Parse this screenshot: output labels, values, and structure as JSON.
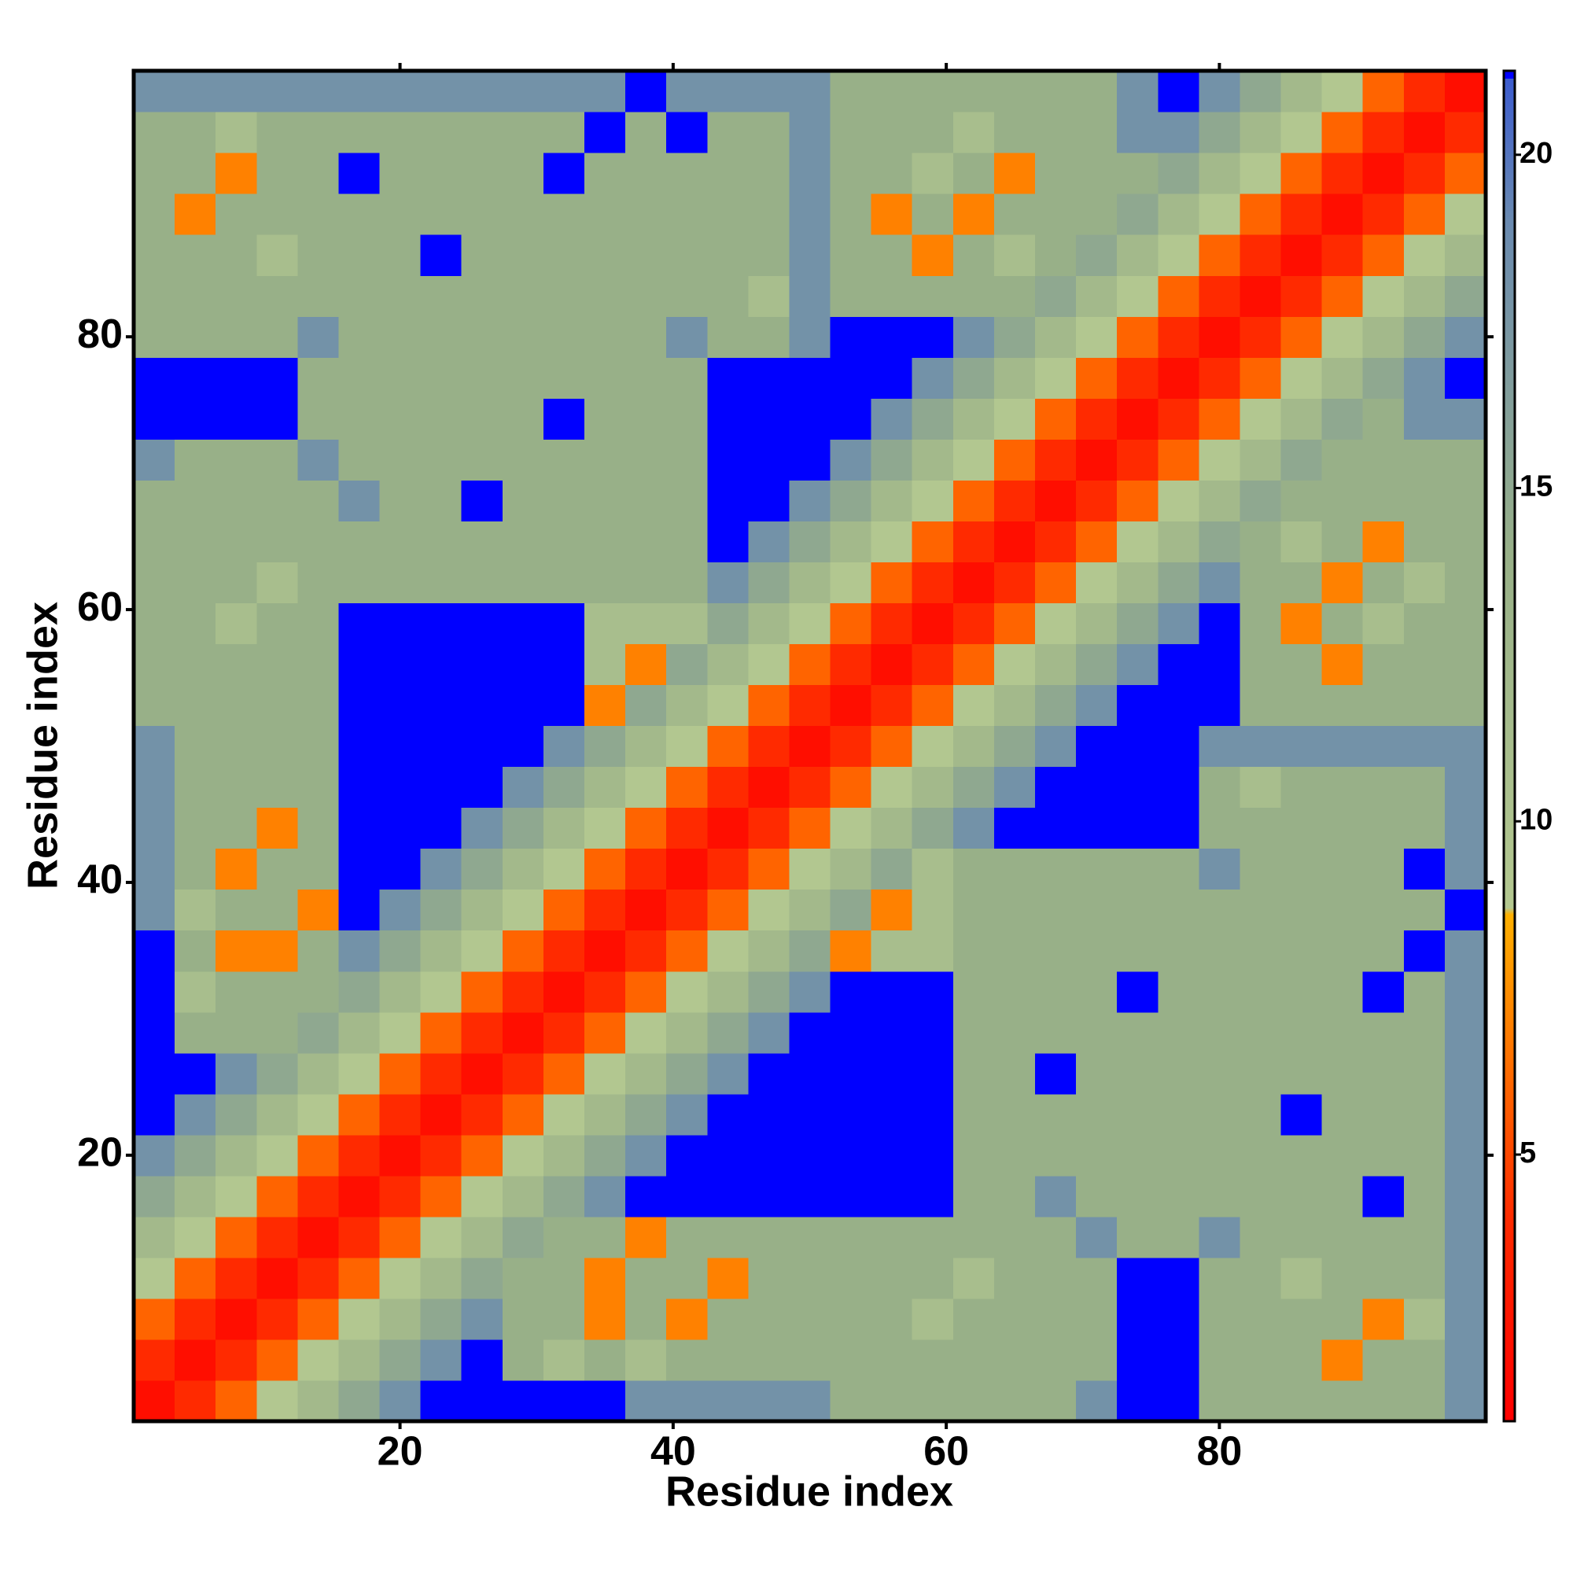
{
  "chart_data": {
    "type": "heatmap",
    "xlabel": "Residue index",
    "ylabel": "Residue index",
    "xlim": [
      0.5,
      99.5
    ],
    "ylim": [
      0.5,
      99.5
    ],
    "xticks": [
      20,
      40,
      60,
      80
    ],
    "yticks": [
      20,
      40,
      60,
      80
    ],
    "zlim": [
      1,
      21.26
    ],
    "colorbar_ticks": [
      5,
      10,
      15,
      20
    ],
    "colorscale": [
      [
        1,
        "#ff0000"
      ],
      [
        4,
        "#ff2a00"
      ],
      [
        8.6,
        "#ffb000"
      ],
      [
        8.7,
        "#b4c890"
      ],
      [
        14,
        "#98b088"
      ],
      [
        19,
        "#6a8ab0"
      ],
      [
        21.26,
        "#3a5ad0"
      ]
    ],
    "over_color": "#0000ff",
    "x": [
      2,
      5,
      8,
      11,
      14,
      17,
      20,
      23,
      26,
      29,
      32,
      35,
      38,
      41,
      44,
      47,
      50,
      53,
      56,
      59,
      62,
      65,
      68,
      71,
      74,
      77,
      80,
      83,
      86,
      89,
      92,
      95,
      98
    ],
    "y": [
      2,
      5,
      8,
      11,
      14,
      17,
      20,
      23,
      26,
      29,
      32,
      35,
      38,
      41,
      44,
      47,
      50,
      53,
      56,
      59,
      62,
      65,
      68,
      71,
      74,
      77,
      80,
      83,
      86,
      89,
      92,
      95,
      98
    ],
    "z": [
      [
        2,
        4,
        6,
        9,
        12,
        15,
        18,
        22,
        22,
        22,
        22,
        22,
        18,
        18,
        18,
        18,
        18,
        14,
        14,
        14,
        14,
        14,
        14,
        18,
        22,
        22,
        14,
        14,
        14,
        14,
        14,
        14,
        18
      ],
      [
        4,
        2,
        4,
        6,
        9,
        12,
        15,
        18,
        22,
        14,
        11,
        14,
        11,
        14,
        14,
        14,
        14,
        14,
        14,
        14,
        14,
        14,
        14,
        14,
        22,
        22,
        14,
        14,
        14,
        7,
        14,
        14,
        18
      ],
      [
        6,
        4,
        2,
        4,
        6,
        9,
        12,
        15,
        18,
        14,
        14,
        7,
        14,
        7,
        14,
        14,
        14,
        14,
        14,
        11,
        14,
        14,
        14,
        14,
        22,
        22,
        14,
        14,
        14,
        14,
        7,
        11,
        18
      ],
      [
        9,
        6,
        4,
        2,
        4,
        6,
        9,
        12,
        15,
        14,
        14,
        7,
        14,
        14,
        7,
        14,
        14,
        14,
        14,
        14,
        11,
        14,
        14,
        14,
        22,
        22,
        14,
        14,
        11,
        14,
        14,
        14,
        18
      ],
      [
        12,
        9,
        6,
        4,
        2,
        4,
        6,
        9,
        12,
        15,
        14,
        14,
        7,
        14,
        14,
        14,
        14,
        14,
        14,
        14,
        14,
        14,
        14,
        18,
        14,
        14,
        18,
        14,
        14,
        14,
        14,
        14,
        18
      ],
      [
        15,
        12,
        9,
        6,
        4,
        2,
        4,
        6,
        9,
        12,
        15,
        18,
        22,
        22,
        22,
        22,
        22,
        22,
        22,
        22,
        14,
        14,
        18,
        14,
        14,
        14,
        14,
        14,
        14,
        14,
        22,
        14,
        18
      ],
      [
        18,
        15,
        12,
        9,
        6,
        4,
        2,
        4,
        6,
        9,
        12,
        15,
        18,
        22,
        22,
        22,
        22,
        22,
        22,
        22,
        14,
        14,
        14,
        14,
        14,
        14,
        14,
        14,
        14,
        14,
        14,
        14,
        18
      ],
      [
        22,
        18,
        15,
        12,
        9,
        6,
        4,
        2,
        4,
        6,
        9,
        12,
        15,
        18,
        22,
        22,
        22,
        22,
        22,
        22,
        14,
        14,
        14,
        14,
        14,
        14,
        14,
        14,
        22,
        14,
        14,
        14,
        18
      ],
      [
        22,
        22,
        18,
        15,
        12,
        9,
        6,
        4,
        2,
        4,
        6,
        9,
        12,
        15,
        18,
        22,
        22,
        22,
        22,
        22,
        14,
        14,
        22,
        14,
        14,
        14,
        14,
        14,
        14,
        14,
        14,
        14,
        18
      ],
      [
        22,
        14,
        14,
        14,
        15,
        12,
        9,
        6,
        4,
        2,
        4,
        6,
        9,
        12,
        15,
        18,
        22,
        22,
        22,
        22,
        14,
        14,
        14,
        14,
        14,
        14,
        14,
        14,
        14,
        14,
        14,
        14,
        18
      ],
      [
        22,
        11,
        14,
        14,
        14,
        15,
        12,
        9,
        6,
        4,
        2,
        4,
        6,
        9,
        12,
        15,
        18,
        22,
        22,
        22,
        14,
        14,
        14,
        14,
        22,
        14,
        14,
        14,
        14,
        14,
        22,
        14,
        18
      ],
      [
        22,
        14,
        7,
        7,
        14,
        18,
        15,
        12,
        9,
        6,
        4,
        2,
        4,
        6,
        9,
        12,
        15,
        7,
        11,
        11,
        14,
        14,
        14,
        14,
        14,
        14,
        14,
        14,
        14,
        14,
        14,
        22,
        18
      ],
      [
        18,
        11,
        14,
        14,
        7,
        22,
        18,
        15,
        12,
        9,
        6,
        4,
        2,
        4,
        6,
        9,
        12,
        15,
        7,
        11,
        14,
        14,
        14,
        14,
        14,
        14,
        14,
        14,
        14,
        14,
        14,
        14,
        22
      ],
      [
        18,
        14,
        7,
        14,
        14,
        22,
        22,
        18,
        15,
        12,
        9,
        6,
        4,
        2,
        4,
        6,
        9,
        12,
        15,
        11,
        14,
        14,
        14,
        14,
        14,
        14,
        18,
        14,
        14,
        14,
        14,
        22,
        18
      ],
      [
        18,
        14,
        14,
        7,
        14,
        22,
        22,
        22,
        18,
        15,
        12,
        9,
        6,
        4,
        2,
        4,
        6,
        9,
        12,
        15,
        18,
        22,
        22,
        22,
        22,
        22,
        14,
        14,
        14,
        14,
        14,
        14,
        18
      ],
      [
        18,
        14,
        14,
        14,
        14,
        22,
        22,
        22,
        22,
        18,
        15,
        12,
        9,
        6,
        4,
        2,
        4,
        6,
        9,
        12,
        15,
        18,
        22,
        22,
        22,
        22,
        14,
        11,
        14,
        14,
        14,
        14,
        18
      ],
      [
        18,
        14,
        14,
        14,
        14,
        22,
        22,
        22,
        22,
        22,
        18,
        15,
        12,
        9,
        6,
        4,
        2,
        4,
        6,
        9,
        12,
        15,
        18,
        22,
        22,
        22,
        18,
        18,
        18,
        18,
        18,
        18,
        18
      ],
      [
        14,
        14,
        14,
        14,
        14,
        22,
        22,
        22,
        22,
        22,
        22,
        7,
        15,
        12,
        9,
        6,
        4,
        2,
        4,
        6,
        9,
        12,
        15,
        18,
        22,
        22,
        22,
        14,
        14,
        14,
        14,
        14,
        14
      ],
      [
        14,
        14,
        14,
        14,
        14,
        22,
        22,
        22,
        22,
        22,
        22,
        11,
        7,
        15,
        12,
        9,
        6,
        4,
        2,
        4,
        6,
        9,
        12,
        15,
        18,
        22,
        22,
        14,
        14,
        7,
        14,
        14,
        14
      ],
      [
        14,
        14,
        11,
        14,
        14,
        22,
        22,
        22,
        22,
        22,
        22,
        11,
        11,
        11,
        15,
        12,
        9,
        6,
        4,
        2,
        4,
        6,
        9,
        12,
        15,
        18,
        22,
        14,
        7,
        14,
        11,
        14,
        14
      ],
      [
        14,
        14,
        14,
        11,
        14,
        14,
        14,
        14,
        14,
        14,
        14,
        14,
        14,
        14,
        18,
        15,
        12,
        9,
        6,
        4,
        2,
        4,
        6,
        9,
        12,
        15,
        18,
        14,
        14,
        7,
        14,
        11,
        14
      ],
      [
        14,
        14,
        14,
        14,
        14,
        14,
        14,
        14,
        14,
        14,
        14,
        14,
        14,
        14,
        22,
        18,
        15,
        12,
        9,
        6,
        4,
        2,
        4,
        6,
        9,
        12,
        15,
        14,
        11,
        14,
        7,
        14,
        14
      ],
      [
        14,
        14,
        14,
        14,
        14,
        18,
        14,
        14,
        22,
        14,
        14,
        14,
        14,
        14,
        22,
        22,
        18,
        15,
        12,
        9,
        6,
        4,
        2,
        4,
        6,
        9,
        12,
        15,
        14,
        14,
        14,
        14,
        14
      ],
      [
        18,
        14,
        14,
        14,
        18,
        14,
        14,
        14,
        14,
        14,
        14,
        14,
        14,
        14,
        22,
        22,
        22,
        18,
        15,
        12,
        9,
        6,
        4,
        2,
        4,
        6,
        9,
        12,
        15,
        14,
        14,
        14,
        14
      ],
      [
        22,
        22,
        22,
        22,
        14,
        14,
        14,
        14,
        14,
        14,
        22,
        14,
        14,
        14,
        22,
        22,
        22,
        22,
        18,
        15,
        12,
        9,
        6,
        4,
        2,
        4,
        6,
        9,
        12,
        15,
        14,
        18,
        18
      ],
      [
        22,
        22,
        22,
        22,
        14,
        14,
        14,
        14,
        14,
        14,
        14,
        14,
        14,
        14,
        22,
        22,
        22,
        22,
        22,
        18,
        15,
        12,
        9,
        6,
        4,
        2,
        4,
        6,
        9,
        12,
        15,
        18,
        22
      ],
      [
        14,
        14,
        14,
        14,
        18,
        14,
        14,
        14,
        14,
        14,
        14,
        14,
        14,
        18,
        14,
        14,
        18,
        22,
        22,
        22,
        18,
        15,
        12,
        9,
        6,
        4,
        2,
        4,
        6,
        9,
        12,
        15,
        18
      ],
      [
        14,
        14,
        14,
        14,
        14,
        14,
        14,
        14,
        14,
        14,
        14,
        14,
        14,
        14,
        14,
        11,
        18,
        14,
        14,
        14,
        14,
        14,
        15,
        12,
        9,
        6,
        4,
        2,
        4,
        6,
        9,
        12,
        15
      ],
      [
        14,
        14,
        14,
        11,
        14,
        14,
        14,
        22,
        14,
        14,
        14,
        14,
        14,
        14,
        14,
        14,
        18,
        14,
        14,
        7,
        14,
        11,
        14,
        15,
        12,
        9,
        6,
        4,
        2,
        4,
        6,
        9,
        12
      ],
      [
        14,
        7,
        14,
        14,
        14,
        14,
        14,
        14,
        14,
        14,
        14,
        14,
        14,
        14,
        14,
        14,
        18,
        14,
        7,
        14,
        7,
        14,
        14,
        14,
        15,
        12,
        9,
        6,
        4,
        2,
        4,
        6,
        9
      ],
      [
        14,
        14,
        7,
        14,
        14,
        22,
        14,
        14,
        14,
        14,
        22,
        14,
        14,
        14,
        14,
        14,
        18,
        14,
        14,
        11,
        14,
        7,
        14,
        14,
        14,
        15,
        12,
        9,
        6,
        4,
        2,
        4,
        6
      ],
      [
        14,
        14,
        11,
        14,
        14,
        14,
        14,
        14,
        14,
        14,
        14,
        22,
        14,
        22,
        14,
        14,
        18,
        14,
        14,
        14,
        11,
        14,
        14,
        14,
        18,
        18,
        15,
        12,
        9,
        6,
        4,
        2,
        4
      ],
      [
        18,
        18,
        18,
        18,
        18,
        18,
        18,
        18,
        18,
        18,
        18,
        18,
        22,
        18,
        18,
        18,
        18,
        14,
        14,
        14,
        14,
        14,
        14,
        14,
        18,
        22,
        18,
        15,
        12,
        9,
        6,
        4,
        2
      ]
    ]
  }
}
